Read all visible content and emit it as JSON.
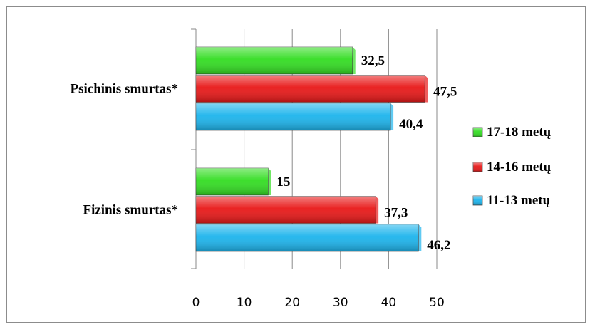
{
  "chart_data": {
    "type": "bar",
    "orientation": "horizontal",
    "categories": [
      "Psichinis smurtas*",
      "Fizinis smurtas*"
    ],
    "series": [
      {
        "name": "17-18 metų",
        "values": [
          32.5,
          15
        ],
        "labels": [
          "32,5",
          "15"
        ],
        "color": "#33dd22"
      },
      {
        "name": "14-16 metų",
        "values": [
          47.5,
          37.3
        ],
        "labels": [
          "47,5",
          "37,3"
        ],
        "color": "#e81818"
      },
      {
        "name": "11-13 metų",
        "values": [
          40.4,
          46.2
        ],
        "labels": [
          "40,4",
          "46,2"
        ],
        "color": "#1cb4ec"
      }
    ],
    "xlim": [
      0,
      50
    ],
    "xticks": [
      "0",
      "10",
      "20",
      "30",
      "40",
      "50"
    ],
    "grid": true,
    "legend_position": "right"
  }
}
